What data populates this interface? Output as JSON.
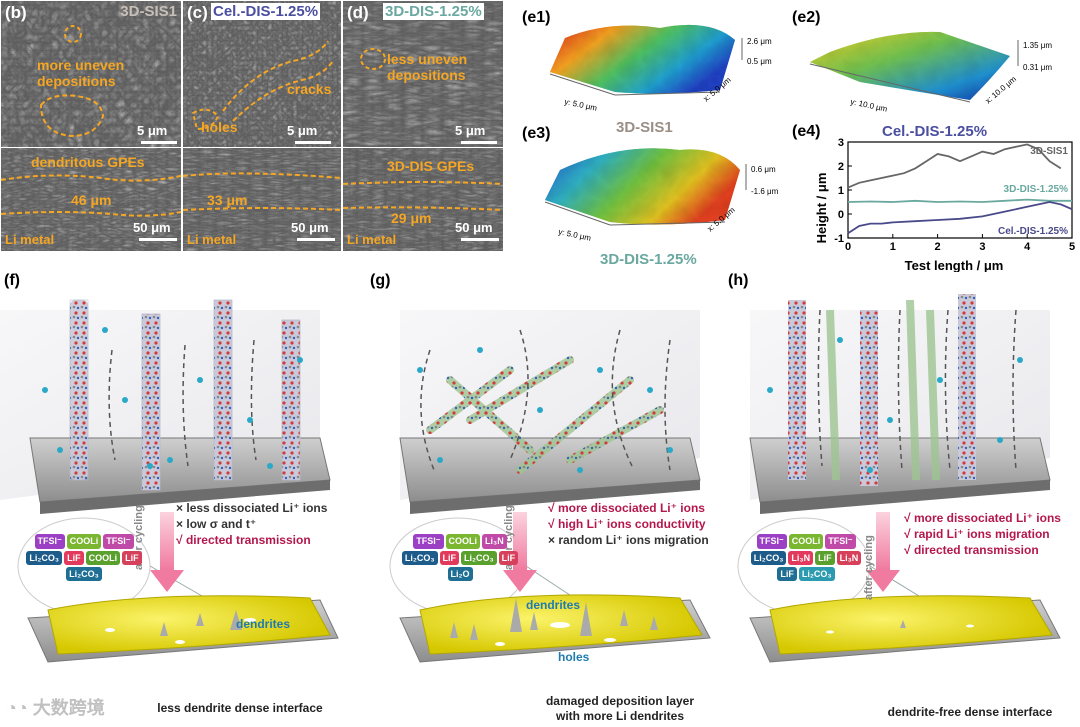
{
  "sem": {
    "b": {
      "panel": "(b)",
      "title": "3D-SIS1",
      "note1": "more uneven depositions",
      "note2": "dendritous GPEs",
      "thickness": "46 μm",
      "scale_top": "5 μm",
      "scale_bottom": "50 μm",
      "metal": "Li metal"
    },
    "c": {
      "panel": "(c)",
      "title": "Cel.-DIS-1.25%",
      "note1": "cracks",
      "note2": "holes",
      "thickness": "33 μm",
      "scale_top": "5 μm",
      "scale_bottom": "50 μm",
      "metal": "Li metal"
    },
    "d": {
      "panel": "(d)",
      "title": "3D-DIS-1.25%",
      "note1": "less uneven depositions",
      "note2": "3D-DIS GPEs",
      "thickness": "29 μm",
      "scale_top": "5 μm",
      "scale_bottom": "50 μm",
      "metal": "Li metal"
    }
  },
  "afm": {
    "e1": {
      "panel": "(e1)",
      "hmax": "2.6 μm",
      "hmin": "0.5 μm",
      "y": "y: 5.0 μm",
      "x": "x: 5.0 μm",
      "label": "3D-SIS1"
    },
    "e2": {
      "panel": "(e2)",
      "hmax": "1.35 μm",
      "hmin": "0.31 μm",
      "y": "y: 10.0 μm",
      "x": "x: 10.0 μm",
      "label": "Cel.-DIS-1.25%"
    },
    "e3": {
      "panel": "(e3)",
      "hmax": "0.6 μm",
      "hmin": "-1.6 μm",
      "y": "y: 5.0 μm",
      "x": "x: 5.0 μm",
      "label": "3D-DIS-1.25%"
    }
  },
  "chart_data": {
    "panel": "(e4)",
    "type": "line",
    "xlabel": "Test length / μm",
    "ylabel": "Height / μm",
    "xlim": [
      0,
      5
    ],
    "ylim": [
      -1,
      3
    ],
    "xticks": [
      "0",
      "1",
      "2",
      "3",
      "4",
      "5"
    ],
    "yticks": [
      "-1",
      "0",
      "1",
      "2",
      "3"
    ],
    "series": [
      {
        "name": "3D-SIS1",
        "color": "#666666",
        "x": [
          0,
          0.25,
          0.5,
          0.75,
          1,
          1.25,
          1.5,
          1.75,
          2,
          2.25,
          2.5,
          2.75,
          3,
          3.25,
          3.5,
          3.75,
          4,
          4.25,
          4.5,
          4.75
        ],
        "values": [
          1.1,
          1.3,
          1.4,
          1.5,
          1.6,
          1.7,
          1.9,
          2.2,
          2.5,
          2.4,
          2.2,
          2.4,
          2.6,
          2.5,
          2.7,
          2.8,
          2.9,
          2.7,
          2.2,
          1.9
        ]
      },
      {
        "name": "3D-DIS-1.25%",
        "color": "#6aa8a0",
        "x": [
          0,
          0.5,
          1,
          1.5,
          2,
          2.5,
          3,
          3.5,
          4,
          4.5,
          5
        ],
        "values": [
          0.5,
          0.52,
          0.5,
          0.55,
          0.5,
          0.52,
          0.5,
          0.55,
          0.6,
          0.55,
          0.55
        ]
      },
      {
        "name": "Cel.-DIS-1.25%",
        "color": "#4a4a8a",
        "x": [
          0,
          0.25,
          0.5,
          0.75,
          1,
          1.5,
          2,
          2.5,
          3,
          3.5,
          4,
          4.25,
          4.5,
          4.75,
          5
        ],
        "values": [
          -0.8,
          -0.5,
          -0.4,
          -0.4,
          -0.35,
          -0.3,
          -0.25,
          -0.2,
          -0.1,
          0.1,
          0.3,
          0.4,
          0.5,
          0.4,
          0.2
        ]
      }
    ]
  },
  "schemes": {
    "f": {
      "panel": "(f)",
      "bullets": [
        {
          "mark": "×",
          "text": "less dissociated Li⁺ ions",
          "style": "g"
        },
        {
          "mark": "×",
          "text": "low σ and t⁺",
          "style": "g"
        },
        {
          "mark": "√",
          "text": "directed  transmission",
          "style": "m"
        }
      ],
      "arrow": "after cycling",
      "sei": [
        "TFSI⁻",
        "COOLi",
        "TFSI⁻",
        "Li₂CO₃",
        "LiF",
        "COOLi",
        "LiF",
        "Li₂CO₃"
      ],
      "callout": "dendrites",
      "caption": "less dendrite dense interface"
    },
    "g": {
      "panel": "(g)",
      "bullets": [
        {
          "mark": "√",
          "text": "more dissociated Li⁺ ions",
          "style": "m"
        },
        {
          "mark": "√",
          "text": "high Li⁺ ions conductivity",
          "style": "m"
        },
        {
          "mark": "×",
          "text": "random Li⁺ ions migration",
          "style": "g"
        }
      ],
      "arrow": "after cycling",
      "sei": [
        "TFSI⁻",
        "COOLi",
        "Li₃N",
        "Li₂CO₃",
        "LiF",
        "Li₂CO₃",
        "LiF",
        "Li₂O"
      ],
      "callout": "dendrites",
      "callout2": "holes",
      "caption": "damaged deposition layer",
      "caption2": "with more Li dendrites"
    },
    "h": {
      "panel": "(h)",
      "bullets": [
        {
          "mark": "√",
          "text": "more dissociated Li⁺ ions",
          "style": "m"
        },
        {
          "mark": "√",
          "text": "rapid Li⁺ ions migration",
          "style": "m"
        },
        {
          "mark": "√",
          "text": "directed  transmission",
          "style": "m"
        }
      ],
      "arrow": "after cycling",
      "sei": [
        "TFSI⁻",
        "COOLi",
        "TFSI⁻",
        "Li₂CO₃",
        "Li₃N",
        "LiF",
        "Li₃N",
        "LiF",
        "Li₂CO₃"
      ],
      "caption": "dendrite-free dense interface"
    }
  },
  "watermark": "大数跨境",
  "colors": {
    "orange": "#f5a623",
    "magenta": "#b4174d",
    "lithium": "#e3d800"
  }
}
